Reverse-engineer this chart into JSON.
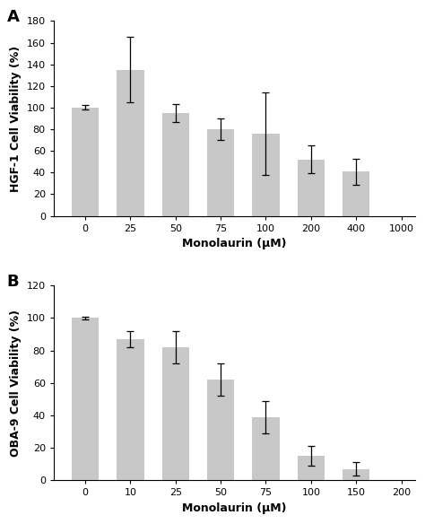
{
  "panel_A": {
    "label": "A",
    "bar_labels": [
      "0",
      "25",
      "50",
      "75",
      "100",
      "200",
      "400"
    ],
    "tick_labels": [
      "0",
      "25",
      "50",
      "75",
      "100",
      "200",
      "400",
      "1000"
    ],
    "values": [
      100,
      135,
      95,
      80,
      76,
      52,
      41
    ],
    "errors": [
      2,
      30,
      8,
      10,
      38,
      13,
      12
    ],
    "ylabel": "HGF-1 Cell Viability (%)",
    "xlabel": "Monolaurin (μM)",
    "ylim": [
      0,
      180
    ],
    "yticks": [
      0,
      20,
      40,
      60,
      80,
      100,
      120,
      140,
      160,
      180
    ],
    "bar_color": "#c8c8c8",
    "n_bars": 7,
    "n_ticks": 8
  },
  "panel_B": {
    "label": "B",
    "bar_labels": [
      "0",
      "10",
      "25",
      "50",
      "75",
      "100",
      "150"
    ],
    "tick_labels": [
      "0",
      "10",
      "25",
      "50",
      "75",
      "100",
      "150",
      "200"
    ],
    "values": [
      100,
      87,
      82,
      62,
      39,
      15,
      7
    ],
    "errors": [
      1,
      5,
      10,
      10,
      10,
      6,
      4
    ],
    "ylabel": "OBA-9 Cell Viability (%)",
    "xlabel": "Monolaurin (μM)",
    "ylim": [
      0,
      120
    ],
    "yticks": [
      0,
      20,
      40,
      60,
      80,
      100,
      120
    ],
    "bar_color": "#c8c8c8",
    "n_bars": 7,
    "n_ticks": 8
  },
  "background_color": "#ffffff",
  "axis_label_fontsize": 9,
  "tick_fontsize": 8,
  "panel_label_fontsize": 13
}
